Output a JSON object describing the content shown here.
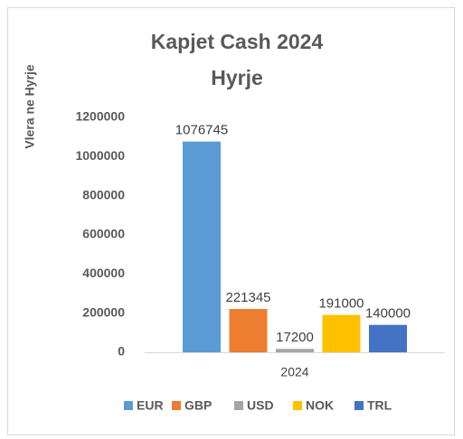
{
  "chart_data": {
    "type": "bar",
    "title": [
      "Kapjet Cash 2024",
      "Hyrje"
    ],
    "y_label": "Vlera ne Hyrje",
    "categories": [
      "2024"
    ],
    "series": [
      {
        "name": "EUR",
        "color": "#5b9bd5",
        "values": [
          1076745
        ]
      },
      {
        "name": "GBP",
        "color": "#ed7d31",
        "values": [
          221345
        ]
      },
      {
        "name": "USD",
        "color": "#a5a5a5",
        "values": [
          17200
        ]
      },
      {
        "name": "NOK",
        "color": "#ffc000",
        "values": [
          191000
        ]
      },
      {
        "name": "TRL",
        "color": "#4472c4",
        "values": [
          140000
        ]
      }
    ],
    "ylim": [
      0,
      1200000
    ],
    "yticks": [
      0,
      200000,
      400000,
      600000,
      800000,
      1000000,
      1200000
    ],
    "grid": false,
    "legend": "bottom"
  }
}
